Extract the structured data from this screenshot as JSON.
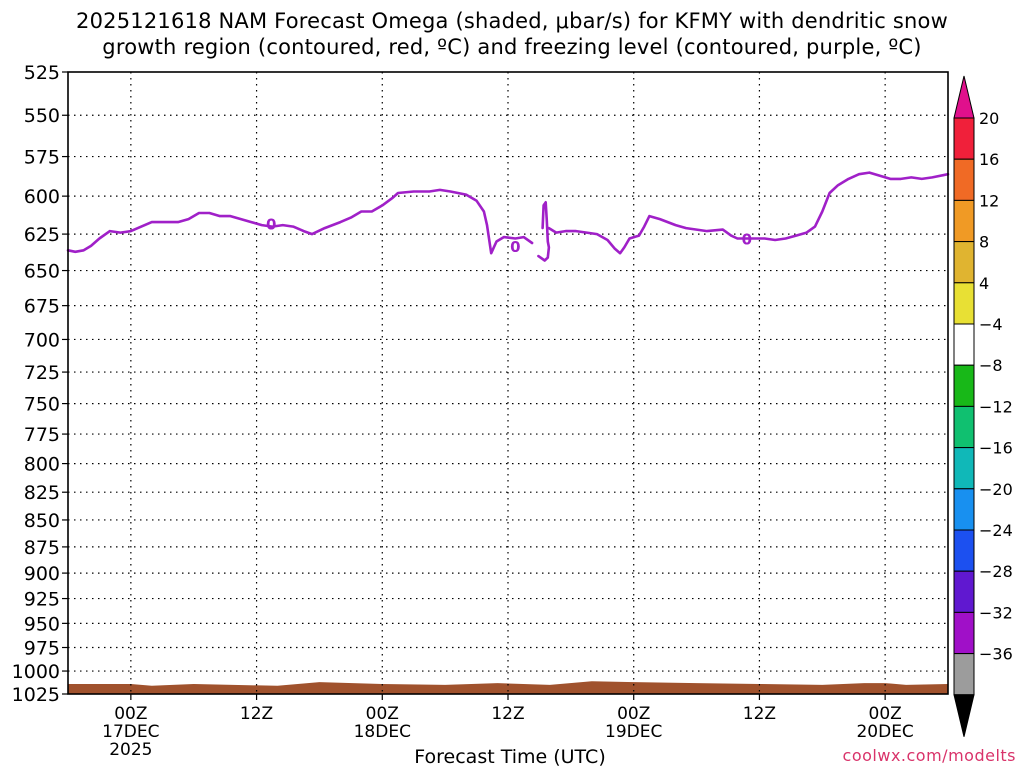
{
  "title": {
    "line1": "2025121618 NAM Forecast Omega (shaded, μbar/s) for KFMY with dendritic snow",
    "line2": "growth region (contoured, red, ºC) and freezing level (contoured, purple, ºC)"
  },
  "xlabel": "Forecast Time (UTC)",
  "credit": "coolwx.com/modelts",
  "chart_data": {
    "type": "line",
    "title": "2025121618 NAM Forecast Omega (shaded, μbar/s) for KFMY with dendritic snow growth region (contoured, red, ºC) and freezing level (contoured, purple, ºC)",
    "xlabel": "Forecast Time (UTC)",
    "ylabel": "",
    "x_range_hours": [
      -6,
      78
    ],
    "y_range_hPa": [
      525,
      1025
    ],
    "y_scale": "log",
    "y_inverted": true,
    "grid": true,
    "y_ticks": [
      525,
      550,
      575,
      600,
      625,
      650,
      675,
      700,
      725,
      750,
      775,
      800,
      825,
      850,
      875,
      900,
      925,
      950,
      975,
      1000,
      1025
    ],
    "x_ticks": [
      {
        "hour": 0,
        "label": [
          "00Z",
          "17DEC",
          "2025"
        ]
      },
      {
        "hour": 12,
        "label": [
          "12Z"
        ]
      },
      {
        "hour": 24,
        "label": [
          "00Z",
          "18DEC"
        ]
      },
      {
        "hour": 36,
        "label": [
          "12Z"
        ]
      },
      {
        "hour": 48,
        "label": [
          "00Z",
          "19DEC"
        ]
      },
      {
        "hour": 60,
        "label": [
          "12Z"
        ]
      },
      {
        "hour": 72,
        "label": [
          "00Z",
          "20DEC"
        ]
      }
    ],
    "freezing_level": {
      "color": "#a020c8",
      "contour_label": "0",
      "segments": [
        [
          [
            -6,
            636
          ],
          [
            -5.3,
            637
          ],
          [
            -4.5,
            636
          ],
          [
            -3.8,
            633
          ],
          [
            -3.0,
            628
          ],
          [
            -2.0,
            623
          ],
          [
            -1.0,
            624
          ],
          [
            0,
            623
          ],
          [
            1.0,
            620
          ],
          [
            2.0,
            617
          ],
          [
            3.5,
            617
          ],
          [
            4.5,
            617
          ],
          [
            5.5,
            615
          ],
          [
            6.5,
            611
          ],
          [
            7.5,
            611
          ],
          [
            8.5,
            613
          ],
          [
            9.5,
            613
          ],
          [
            10.5,
            615
          ],
          [
            11.5,
            617
          ],
          [
            12.5,
            619
          ],
          [
            13.5,
            620
          ],
          [
            14.5,
            619
          ],
          [
            15.5,
            620
          ],
          [
            16.5,
            623
          ],
          [
            17.3,
            625
          ],
          [
            18.5,
            621
          ],
          [
            20.0,
            617
          ],
          [
            21.0,
            614
          ],
          [
            22.0,
            610
          ],
          [
            23.0,
            610
          ],
          [
            24.0,
            606
          ],
          [
            25.0,
            601
          ],
          [
            25.5,
            598
          ],
          [
            27.0,
            597
          ],
          [
            28.5,
            597
          ],
          [
            29.5,
            596
          ],
          [
            30.5,
            597
          ],
          [
            32.0,
            599
          ],
          [
            33.0,
            603
          ],
          [
            33.7,
            610
          ],
          [
            34.0,
            619
          ],
          [
            34.4,
            638
          ],
          [
            34.9,
            630
          ],
          [
            35.6,
            627
          ],
          [
            36.7,
            628
          ],
          [
            37.5,
            627
          ],
          [
            38.3,
            631
          ]
        ],
        [
          [
            39.3,
            621
          ],
          [
            39.4,
            606
          ],
          [
            39.6,
            604
          ],
          [
            39.7,
            616
          ],
          [
            39.8,
            630
          ],
          [
            39.9,
            634
          ],
          [
            39.8,
            641
          ],
          [
            39.5,
            643
          ],
          [
            38.9,
            640
          ]
        ],
        [
          [
            39.9,
            621
          ],
          [
            40.6,
            624
          ],
          [
            41.5,
            623
          ],
          [
            42.5,
            623
          ],
          [
            43.5,
            624
          ],
          [
            44.5,
            625
          ],
          [
            45.5,
            629
          ],
          [
            46.2,
            635
          ],
          [
            46.7,
            638
          ],
          [
            47.1,
            634
          ],
          [
            47.6,
            628
          ],
          [
            48.5,
            626
          ],
          [
            49.0,
            620
          ],
          [
            49.5,
            613
          ],
          [
            50.5,
            615
          ],
          [
            52.0,
            619
          ],
          [
            53.0,
            621
          ],
          [
            54.0,
            622
          ],
          [
            55.0,
            623
          ],
          [
            56.5,
            622
          ],
          [
            57.3,
            626
          ],
          [
            57.9,
            628
          ],
          [
            59.0,
            628
          ],
          [
            60.5,
            628
          ],
          [
            61.5,
            629
          ],
          [
            62.5,
            628
          ],
          [
            63.5,
            626
          ],
          [
            64.5,
            624
          ],
          [
            65.3,
            620
          ],
          [
            66.0,
            610
          ],
          [
            66.7,
            598
          ],
          [
            67.5,
            593
          ],
          [
            68.5,
            589
          ],
          [
            69.5,
            586
          ],
          [
            70.5,
            585
          ],
          [
            71.5,
            587
          ],
          [
            72.5,
            589
          ],
          [
            73.5,
            589
          ],
          [
            74.5,
            588
          ],
          [
            75.5,
            589
          ],
          [
            76.5,
            588
          ],
          [
            78.0,
            586
          ]
        ]
      ],
      "labels": [
        {
          "hour": 13.4,
          "hPa": 618
        },
        {
          "hour": 36.7,
          "hPa": 633
        },
        {
          "hour": 58.8,
          "hPa": 628
        }
      ]
    },
    "terrain": {
      "color": "#a0522d",
      "note": "surface below ~1015 hPa",
      "points": [
        [
          -6,
          1014
        ],
        [
          0,
          1014
        ],
        [
          2,
          1016
        ],
        [
          6,
          1014
        ],
        [
          14,
          1016
        ],
        [
          18,
          1012
        ],
        [
          24,
          1014
        ],
        [
          30,
          1015
        ],
        [
          35,
          1013
        ],
        [
          40,
          1015
        ],
        [
          44,
          1011
        ],
        [
          48,
          1012
        ],
        [
          54,
          1013
        ],
        [
          60,
          1014
        ],
        [
          66,
          1015
        ],
        [
          70,
          1013
        ],
        [
          72,
          1013
        ],
        [
          74,
          1015
        ],
        [
          78,
          1014
        ]
      ]
    },
    "colorbar": {
      "levels": [
        20,
        16,
        12,
        8,
        4,
        -4,
        -8,
        -12,
        -16,
        -20,
        -24,
        -28,
        -32,
        -36
      ],
      "top_triangle_color": "#e0108c",
      "bottom_triangle_color": "#000000",
      "bands": [
        "#f0203a",
        "#f06a25",
        "#f09a25",
        "#e0b430",
        "#e8e034",
        "#ffffff",
        "#18b818",
        "#10c070",
        "#10b8b8",
        "#1890f0",
        "#1c50f0",
        "#6018d0",
        "#a010c8",
        "#9c9c9c"
      ]
    }
  }
}
